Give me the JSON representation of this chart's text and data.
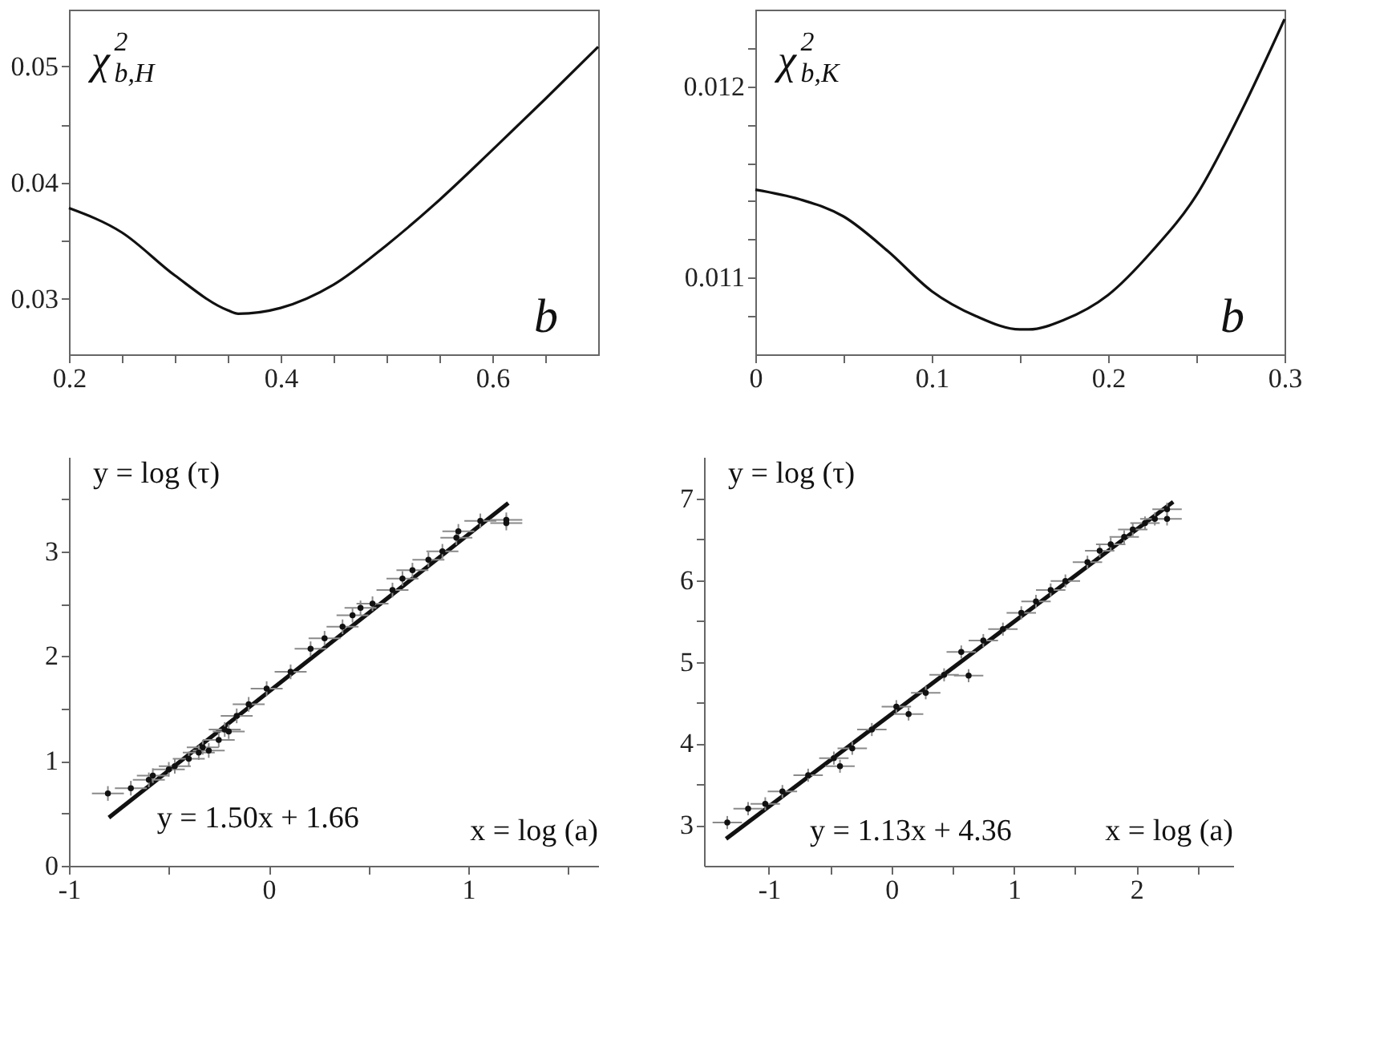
{
  "chart_data": [
    {
      "type": "line",
      "ylabel": "χ$^{2}$$_{b,H}$",
      "xlabel": "b",
      "x": [
        0.2,
        0.25,
        0.3,
        0.35,
        0.36,
        0.4,
        0.45,
        0.5,
        0.55,
        0.6,
        0.65,
        0.7
      ],
      "values": [
        0.0378,
        0.0357,
        0.032,
        0.029,
        0.0287,
        0.0292,
        0.0312,
        0.0346,
        0.0385,
        0.0428,
        0.0472,
        0.0517
      ],
      "color": "#111111",
      "xlim": [
        0.2,
        0.7
      ],
      "ylim": [
        0.0252,
        0.0549
      ],
      "xticks": [
        0.2,
        {
          "value": 0.25,
          "label": null
        },
        {
          "value": 0.3,
          "label": null
        },
        {
          "value": 0.35,
          "label": null
        },
        0.4,
        {
          "value": 0.45,
          "label": null
        },
        {
          "value": 0.5,
          "label": null
        },
        {
          "value": 0.55,
          "label": null
        },
        0.6,
        {
          "value": 0.65,
          "label": null
        }
      ],
      "yticks": [
        0.03,
        {
          "value": 0.035,
          "label": null
        },
        0.04,
        {
          "value": 0.045,
          "label": null
        },
        0.05
      ]
    },
    {
      "type": "line",
      "ylabel": "χ$^{2}$$_{b,K}$",
      "xlabel": "b",
      "x": [
        0,
        0.025,
        0.05,
        0.075,
        0.1,
        0.125,
        0.15,
        0.155,
        0.175,
        0.2,
        0.225,
        0.25,
        0.275,
        0.3
      ],
      "values": [
        0.01146,
        0.01141,
        0.01132,
        0.01114,
        0.01093,
        0.0108,
        0.01073,
        0.01073,
        0.01078,
        0.01091,
        0.01114,
        0.01143,
        0.01186,
        0.01235
      ],
      "color": "#111111",
      "xlim": [
        0,
        0.3
      ],
      "ylim": [
        0.0106,
        0.0124
      ],
      "xticks": [
        0,
        {
          "value": 0.05,
          "label": null
        },
        0.1,
        {
          "value": 0.15,
          "label": null
        },
        0.2,
        {
          "value": 0.25,
          "label": null
        },
        0.3
      ],
      "yticks": [
        {
          "value": 0.0108,
          "label": null
        },
        0.011,
        {
          "value": 0.0112,
          "label": null
        },
        {
          "value": 0.0114,
          "label": null
        },
        {
          "value": 0.0116,
          "label": null
        },
        {
          "value": 0.0118,
          "label": null
        },
        0.012,
        {
          "value": 0.0122,
          "label": null
        }
      ]
    },
    {
      "type": "scatter",
      "ylabel": "y = log (τ)",
      "xlabel": "x = log (a)",
      "annotations": [
        {
          "text": "y = 1.50x + 1.66",
          "x": -0.8,
          "y": 0.46
        }
      ],
      "xlim": [
        -1,
        1.65
      ],
      "ylim": [
        0,
        3.9
      ],
      "xticks": [
        -1,
        {
          "value": -0.5,
          "label": null
        },
        0,
        {
          "value": 0.5,
          "label": null
        },
        1,
        {
          "value": 1.5,
          "label": null
        }
      ],
      "yticks": [
        0,
        {
          "value": 0.5,
          "label": null
        },
        1,
        {
          "value": 1.5,
          "label": null
        },
        2,
        {
          "value": 2.5,
          "label": null
        },
        3,
        {
          "value": 3.5,
          "label": null
        }
      ],
      "series": [
        {
          "type": "scatter",
          "color": "#111111",
          "x": [
            -0.805,
            -0.69,
            -0.6,
            -0.58,
            -0.5,
            -0.47,
            -0.4,
            -0.35,
            -0.33,
            -0.3,
            -0.25,
            -0.22,
            -0.2,
            -0.16,
            -0.1,
            -0.01,
            0.11,
            0.21,
            0.28,
            0.37,
            0.42,
            0.46,
            0.52,
            0.62,
            0.67,
            0.72,
            0.8,
            0.87,
            0.94,
            0.95,
            1.06,
            1.19,
            1.19
          ],
          "values": [
            0.69,
            0.74,
            0.82,
            0.86,
            0.92,
            0.95,
            1.02,
            1.08,
            1.13,
            1.1,
            1.2,
            1.3,
            1.28,
            1.43,
            1.54,
            1.69,
            1.85,
            2.07,
            2.17,
            2.28,
            2.39,
            2.46,
            2.5,
            2.63,
            2.74,
            2.82,
            2.92,
            3.0,
            3.13,
            3.19,
            3.29,
            3.3,
            3.27
          ],
          "errors": [
            0.07,
            0.07,
            0.07,
            0.07,
            0.07,
            0.07,
            0.07,
            0.07,
            0.07,
            0.07,
            0.07,
            0.07,
            0.07,
            0.07,
            0.07,
            0.07,
            0.07,
            0.07,
            0.07,
            0.07,
            0.07,
            0.07,
            0.07,
            0.07,
            0.07,
            0.07,
            0.07,
            0.07,
            0.07,
            0.07,
            0.07,
            0.07,
            0.07
          ],
          "xerrors": [
            0.08,
            0.08,
            0.08,
            0.08,
            0.08,
            0.08,
            0.08,
            0.08,
            0.08,
            0.08,
            0.08,
            0.08,
            0.08,
            0.08,
            0.08,
            0.08,
            0.08,
            0.08,
            0.08,
            0.08,
            0.08,
            0.08,
            0.08,
            0.08,
            0.08,
            0.08,
            0.08,
            0.08,
            0.08,
            0.08,
            0.08,
            0.08,
            0.08
          ]
        },
        {
          "type": "line",
          "color": "#111111",
          "x": [
            -0.8,
            1.2
          ],
          "values": [
            0.46,
            3.46
          ]
        }
      ]
    },
    {
      "type": "scatter",
      "ylabel": "y = log (τ)",
      "xlabel": "x = log (a)",
      "annotations": [
        "y = 1.13x + 4.36"
      ],
      "xlim": [
        -1.53,
        2.79
      ],
      "ylim": [
        2.5,
        7.51
      ],
      "xticks": [
        -1,
        {
          "value": -0.5,
          "label": null
        },
        0,
        {
          "value": 0.5,
          "label": null
        },
        1,
        {
          "value": 1.5,
          "label": null
        },
        2,
        {
          "value": 2.5,
          "label": null
        }
      ],
      "yticks": [
        3,
        {
          "value": 3.5,
          "label": null
        },
        4,
        {
          "value": 4.5,
          "label": null
        },
        5,
        {
          "value": 5.5,
          "label": null
        },
        6,
        {
          "value": 6.5,
          "label": null
        },
        7
      ],
      "series": [
        {
          "type": "scatter",
          "color": "#111111",
          "x": [
            -1.34,
            -1.17,
            -1.03,
            -0.89,
            -0.68,
            -0.47,
            -0.42,
            -0.32,
            -0.16,
            0.04,
            0.14,
            0.28,
            0.43,
            0.63,
            0.57,
            0.75,
            0.91,
            1.06,
            1.18,
            1.3,
            1.42,
            1.6,
            1.7,
            1.79,
            1.9,
            1.97,
            2.07,
            2.15,
            2.25,
            2.25
          ],
          "values": [
            3.03,
            3.2,
            3.26,
            3.41,
            3.61,
            3.82,
            3.72,
            3.94,
            4.17,
            4.45,
            4.36,
            4.62,
            4.84,
            4.83,
            5.12,
            5.26,
            5.4,
            5.6,
            5.74,
            5.88,
            5.99,
            6.22,
            6.36,
            6.44,
            6.53,
            6.62,
            6.7,
            6.75,
            6.75,
            6.87
          ],
          "errors": [
            0.08,
            0.08,
            0.08,
            0.08,
            0.08,
            0.08,
            0.08,
            0.08,
            0.08,
            0.08,
            0.08,
            0.08,
            0.08,
            0.08,
            0.08,
            0.08,
            0.08,
            0.08,
            0.08,
            0.08,
            0.08,
            0.08,
            0.08,
            0.08,
            0.08,
            0.08,
            0.08,
            0.08,
            0.08,
            0.08
          ],
          "xerrors": [
            0.12,
            0.12,
            0.12,
            0.12,
            0.12,
            0.12,
            0.12,
            0.12,
            0.12,
            0.12,
            0.12,
            0.12,
            0.12,
            0.12,
            0.12,
            0.12,
            0.12,
            0.12,
            0.12,
            0.12,
            0.12,
            0.12,
            0.12,
            0.12,
            0.12,
            0.12,
            0.12,
            0.12,
            0.12,
            0.12
          ]
        },
        {
          "type": "line",
          "color": "#111111",
          "x": [
            -1.35,
            2.3
          ],
          "values": [
            2.83,
            6.96
          ]
        }
      ]
    }
  ]
}
